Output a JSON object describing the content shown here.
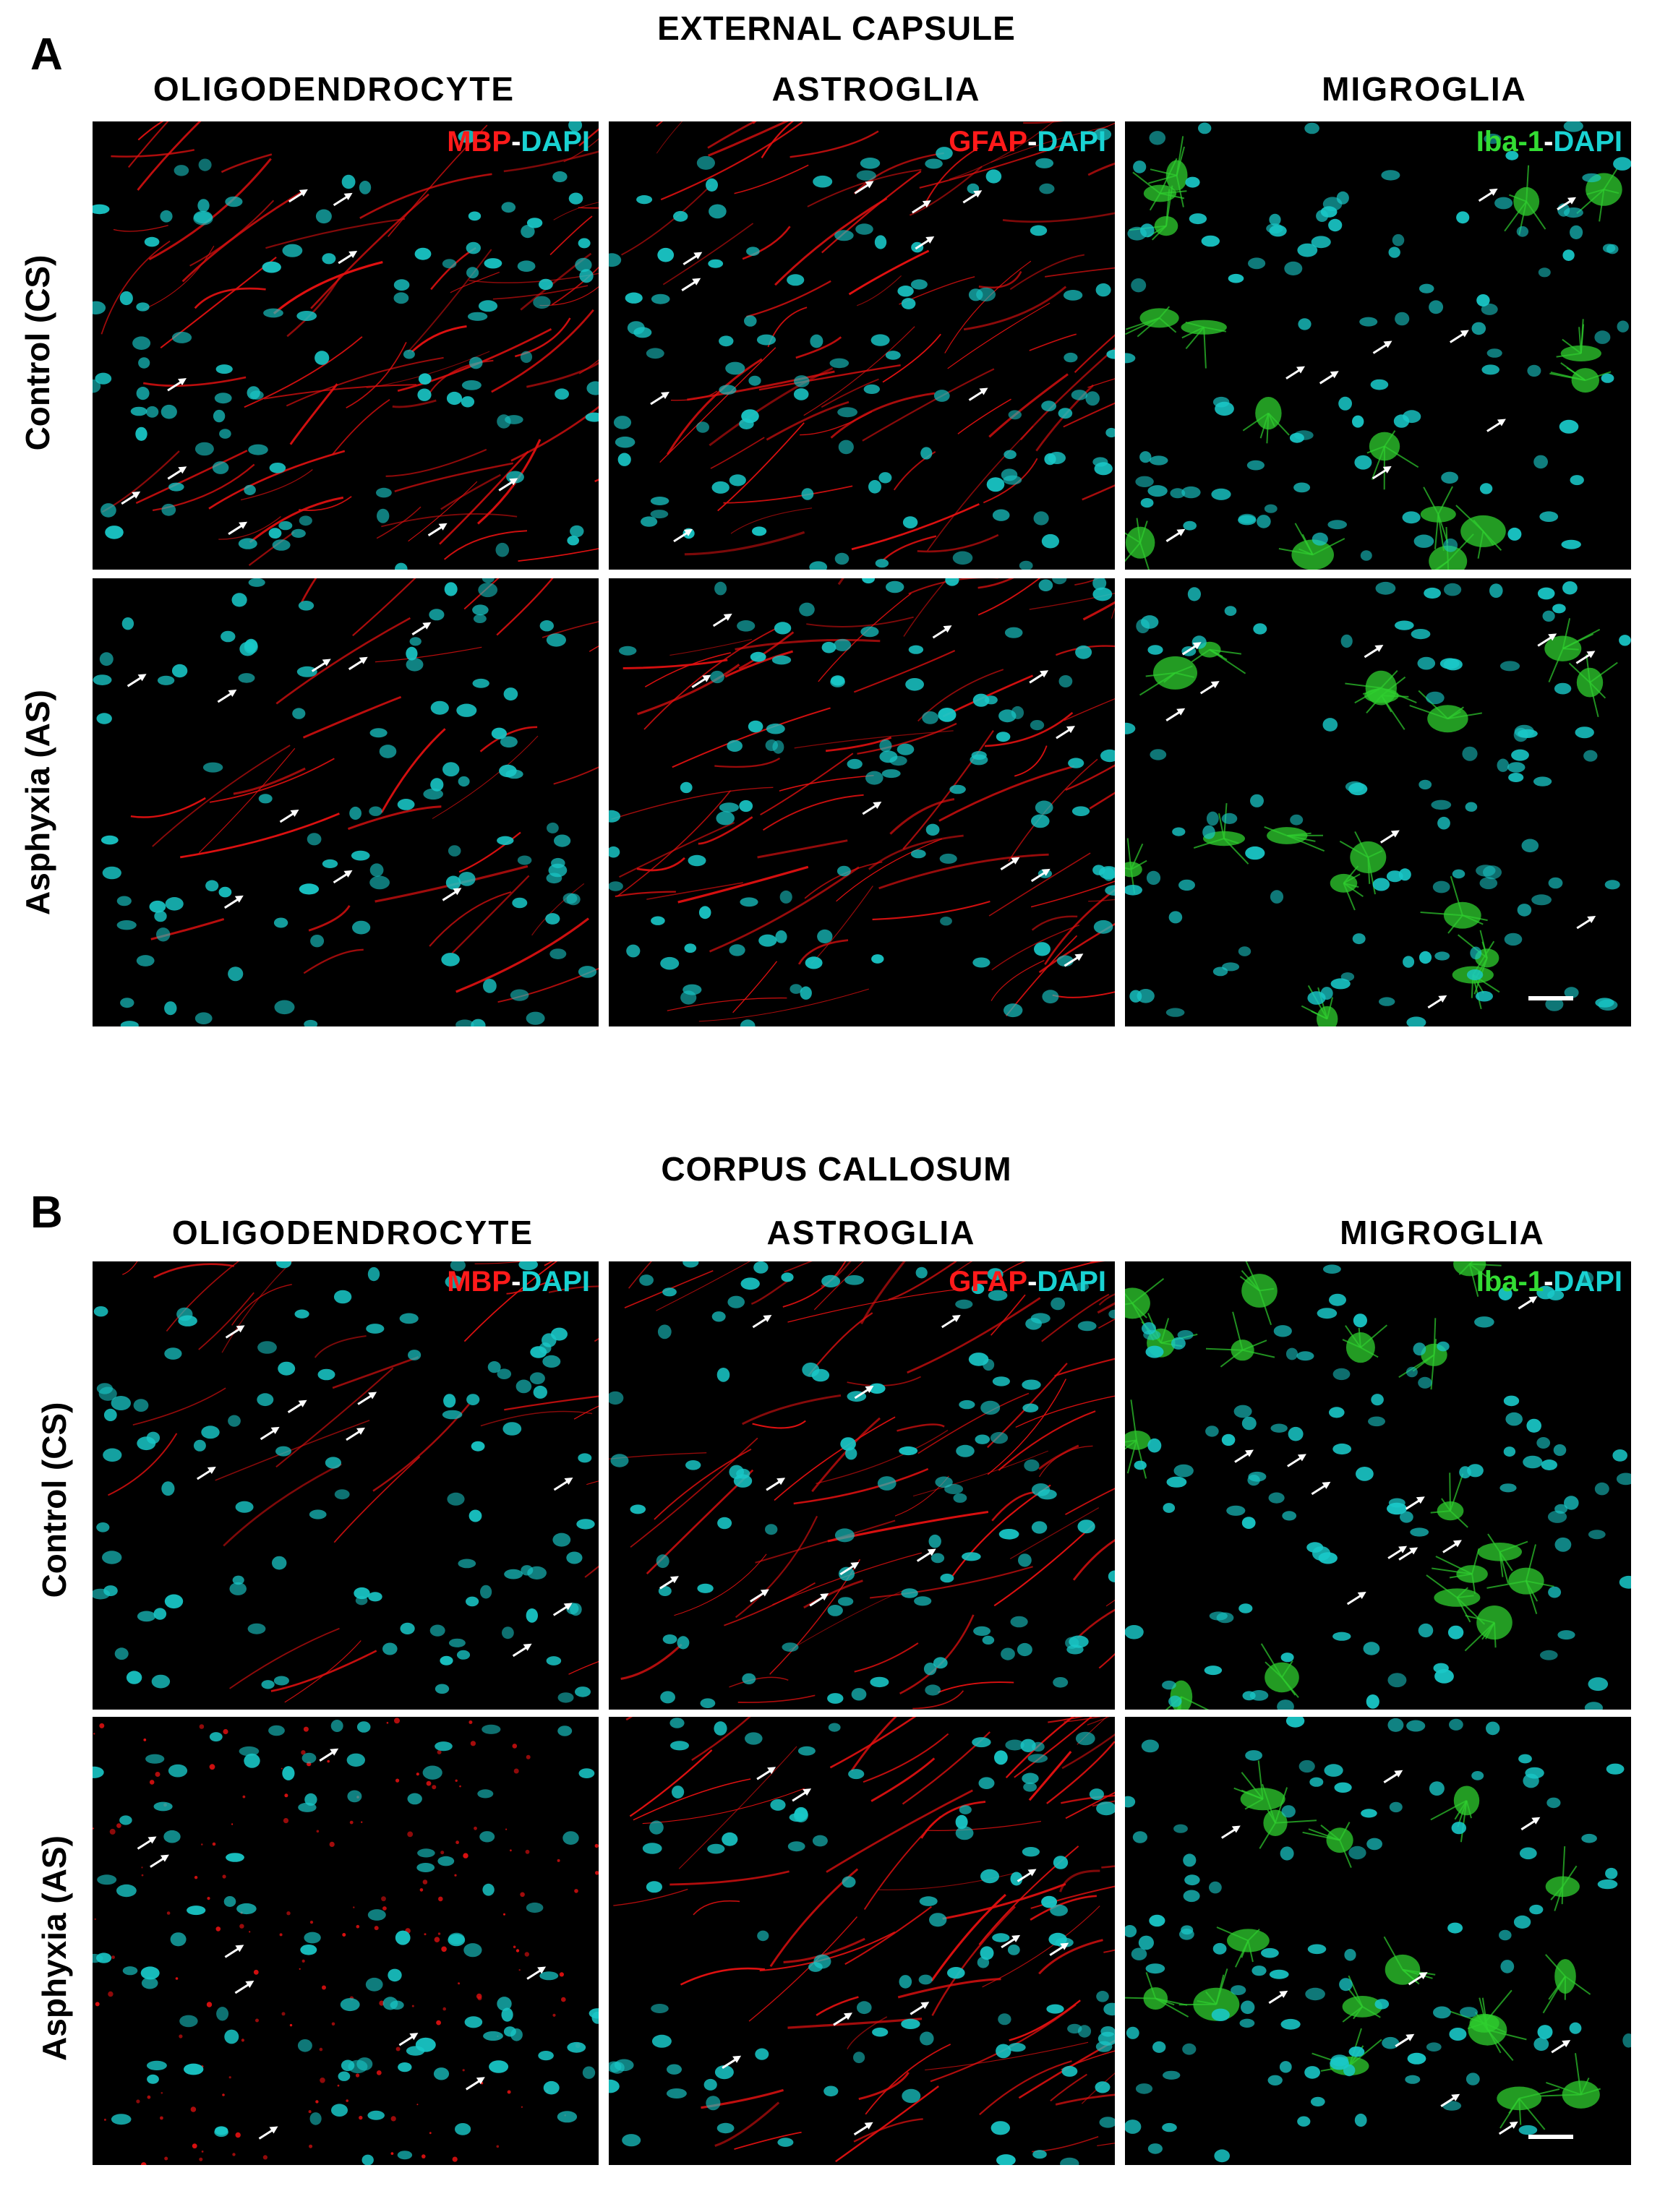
{
  "panelA": {
    "letter": "A",
    "title": "EXTERNAL CAPSULE",
    "columns": [
      "OLIGODENDROCYTE",
      "ASTROGLIA",
      "MIGROGLIA"
    ],
    "rows": [
      "Control (CS)",
      "Asphyxia (AS)"
    ],
    "stains": [
      {
        "marker": "MBP",
        "sep": "-",
        "dapi": "DAPI"
      },
      {
        "marker": "GFAP",
        "sep": "-",
        "dapi": "DAPI"
      },
      {
        "marker": "Iba-1",
        "sep": "-",
        "dapi": "DAPI"
      }
    ]
  },
  "panelB": {
    "letter": "B",
    "title": "CORPUS CALLOSUM",
    "columns": [
      "OLIGODENDROCYTE",
      "ASTROGLIA",
      "MIGROGLIA"
    ],
    "rows": [
      "Control (CS)",
      "Asphyxia (AS)"
    ],
    "stains": [
      {
        "marker": "MBP",
        "sep": "-",
        "dapi": "DAPI"
      },
      {
        "marker": "GFAP",
        "sep": "-",
        "dapi": "DAPI"
      },
      {
        "marker": "Iba-1",
        "sep": "-",
        "dapi": "DAPI"
      }
    ]
  },
  "colors": {
    "background": "#000000",
    "nuclei": "#19c8c8",
    "mbp_gfap": "#e01010",
    "iba1": "#2fcf2f",
    "arrow": "#ffffff"
  }
}
